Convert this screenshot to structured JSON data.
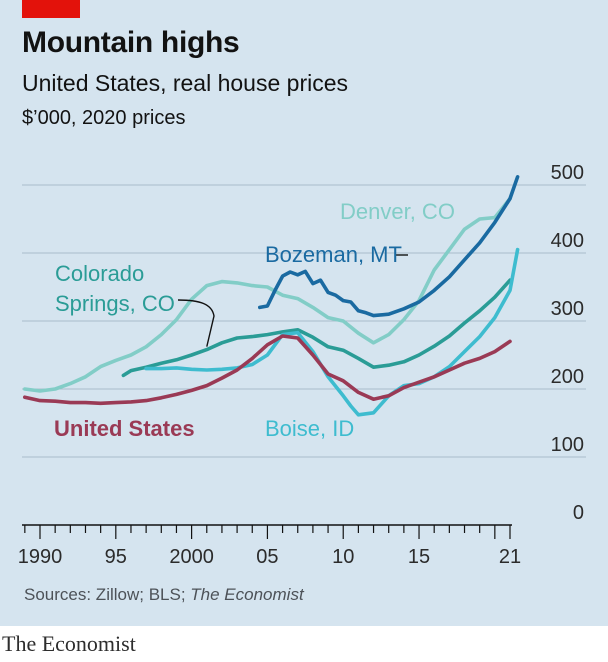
{
  "header": {
    "title": "Mountain highs",
    "subtitle": "United States, real house prices",
    "units": "$’000, 2020 prices"
  },
  "source": {
    "prefix": "Sources: Zillow; BLS; ",
    "italic": "The Economist"
  },
  "footer": {
    "brand": "The Economist"
  },
  "colors": {
    "background": "#d5e4ef",
    "grid": "#a9bccb",
    "axis": "#121212",
    "tag": "#e3120b"
  },
  "chart_data": {
    "type": "line",
    "title": "Mountain highs",
    "subtitle": "United States, real house prices",
    "ylabel": "$’000, 2020 prices",
    "xlim": [
      1988.5,
      2023
    ],
    "ylim": [
      0,
      500
    ],
    "y_ticks": [
      0,
      100,
      200,
      300,
      400,
      500
    ],
    "x_ticks": [
      1990,
      1995,
      2000,
      2005,
      2010,
      2015,
      2020
    ],
    "x_tick_labels": [
      "1990",
      "95",
      "2000",
      "05",
      "10",
      "15",
      "21"
    ],
    "grid": true,
    "series": [
      {
        "name": "Denver, CO",
        "label": "Denver, CO",
        "color": "#82cdc7",
        "points": [
          [
            1989,
            200
          ],
          [
            1990,
            197
          ],
          [
            1991,
            200
          ],
          [
            1992,
            208
          ],
          [
            1993,
            218
          ],
          [
            1994,
            233
          ],
          [
            1995,
            242
          ],
          [
            1996,
            250
          ],
          [
            1997,
            262
          ],
          [
            1998,
            280
          ],
          [
            1999,
            302
          ],
          [
            2000,
            332
          ],
          [
            2001,
            352
          ],
          [
            2002,
            358
          ],
          [
            2003,
            356
          ],
          [
            2004,
            352
          ],
          [
            2005,
            350
          ],
          [
            2006,
            338
          ],
          [
            2007,
            333
          ],
          [
            2008,
            320
          ],
          [
            2009,
            305
          ],
          [
            2010,
            300
          ],
          [
            2011,
            282
          ],
          [
            2012,
            268
          ],
          [
            2013,
            280
          ],
          [
            2014,
            302
          ],
          [
            2015,
            330
          ],
          [
            2016,
            375
          ],
          [
            2017,
            405
          ],
          [
            2018,
            435
          ],
          [
            2019,
            450
          ],
          [
            2020,
            452
          ],
          [
            2021,
            480
          ]
        ]
      },
      {
        "name": "Bozeman, MT",
        "label": "Bozeman, MT",
        "color": "#1a6aa1",
        "points": [
          [
            2004.5,
            320
          ],
          [
            2005,
            322
          ],
          [
            2005.5,
            345
          ],
          [
            2006,
            366
          ],
          [
            2006.5,
            372
          ],
          [
            2007,
            368
          ],
          [
            2007.5,
            373
          ],
          [
            2008,
            355
          ],
          [
            2008.5,
            360
          ],
          [
            2009,
            342
          ],
          [
            2009.5,
            338
          ],
          [
            2010,
            330
          ],
          [
            2010.5,
            328
          ],
          [
            2011,
            315
          ],
          [
            2011.5,
            312
          ],
          [
            2012,
            308
          ],
          [
            2013,
            310
          ],
          [
            2014,
            318
          ],
          [
            2015,
            328
          ],
          [
            2016,
            345
          ],
          [
            2017,
            365
          ],
          [
            2018,
            390
          ],
          [
            2019,
            415
          ],
          [
            2020,
            445
          ],
          [
            2021,
            480
          ],
          [
            2021.5,
            512
          ]
        ]
      },
      {
        "name": "Colorado Springs, CO",
        "label": "Colorado\nSprings, CO",
        "color": "#2a9c96",
        "points": [
          [
            1995.5,
            220
          ],
          [
            1996,
            227
          ],
          [
            1997,
            232
          ],
          [
            1998,
            238
          ],
          [
            1999,
            243
          ],
          [
            2000,
            250
          ],
          [
            2001,
            258
          ],
          [
            2002,
            268
          ],
          [
            2003,
            275
          ],
          [
            2004,
            277
          ],
          [
            2005,
            280
          ],
          [
            2006,
            284
          ],
          [
            2007,
            287
          ],
          [
            2008,
            276
          ],
          [
            2009,
            262
          ],
          [
            2010,
            257
          ],
          [
            2011,
            245
          ],
          [
            2012,
            232
          ],
          [
            2013,
            235
          ],
          [
            2014,
            240
          ],
          [
            2015,
            250
          ],
          [
            2016,
            263
          ],
          [
            2017,
            278
          ],
          [
            2018,
            297
          ],
          [
            2019,
            315
          ],
          [
            2020,
            335
          ],
          [
            2021,
            360
          ]
        ]
      },
      {
        "name": "Boise, ID",
        "label": "Boise, ID",
        "color": "#3ebccf",
        "points": [
          [
            1997,
            230
          ],
          [
            1998,
            230
          ],
          [
            1999,
            231
          ],
          [
            2000,
            229
          ],
          [
            2001,
            228
          ],
          [
            2002,
            229
          ],
          [
            2003,
            231
          ],
          [
            2004,
            236
          ],
          [
            2005,
            250
          ],
          [
            2006,
            280
          ],
          [
            2007,
            283
          ],
          [
            2008,
            255
          ],
          [
            2009,
            218
          ],
          [
            2010,
            190
          ],
          [
            2010.5,
            175
          ],
          [
            2011,
            162
          ],
          [
            2012,
            165
          ],
          [
            2013,
            190
          ],
          [
            2014,
            205
          ],
          [
            2015,
            208
          ],
          [
            2016,
            218
          ],
          [
            2017,
            233
          ],
          [
            2018,
            255
          ],
          [
            2019,
            277
          ],
          [
            2020,
            305
          ],
          [
            2021,
            345
          ],
          [
            2021.5,
            405
          ]
        ]
      },
      {
        "name": "United States",
        "label": "United States",
        "color": "#9a3a55",
        "points": [
          [
            1989,
            188
          ],
          [
            1990,
            183
          ],
          [
            1991,
            182
          ],
          [
            1992,
            180
          ],
          [
            1993,
            180
          ],
          [
            1994,
            179
          ],
          [
            1995,
            180
          ],
          [
            1996,
            181
          ],
          [
            1997,
            183
          ],
          [
            1998,
            187
          ],
          [
            1999,
            192
          ],
          [
            2000,
            198
          ],
          [
            2001,
            205
          ],
          [
            2002,
            216
          ],
          [
            2003,
            228
          ],
          [
            2004,
            245
          ],
          [
            2005,
            265
          ],
          [
            2006,
            278
          ],
          [
            2007,
            275
          ],
          [
            2008,
            250
          ],
          [
            2009,
            222
          ],
          [
            2010,
            212
          ],
          [
            2011,
            195
          ],
          [
            2012,
            185
          ],
          [
            2013,
            190
          ],
          [
            2014,
            202
          ],
          [
            2015,
            210
          ],
          [
            2016,
            218
          ],
          [
            2017,
            228
          ],
          [
            2018,
            238
          ],
          [
            2019,
            245
          ],
          [
            2020,
            255
          ],
          [
            2021,
            270
          ]
        ]
      }
    ]
  }
}
